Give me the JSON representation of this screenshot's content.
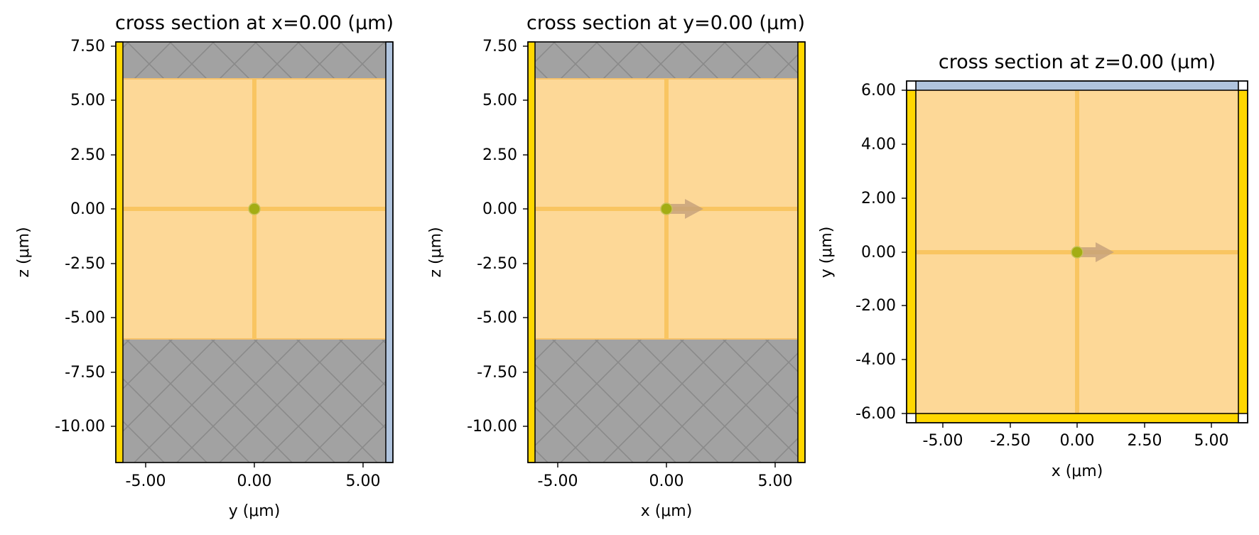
{
  "chart_data": [
    {
      "type": "diagram",
      "title": "cross section at x=0.00 (μm)",
      "xlabel": "y (μm)",
      "ylabel": "z (μm)",
      "xlim": [
        -6.2,
        6.2
      ],
      "ylim": [
        -11.6,
        7.7
      ],
      "xticks": [
        -5,
        0,
        5
      ],
      "xtick_labels": [
        "-5.00",
        "0.00",
        "5.00"
      ],
      "yticks": [
        7.5,
        5,
        2.5,
        0,
        -2.5,
        -5,
        -7.5,
        -10
      ],
      "ytick_labels": [
        "7.50",
        "5.00",
        "2.50",
        "0.00",
        "-2.50",
        "-5.00",
        "-7.50",
        "-10.00"
      ],
      "hatched_regions": [
        [
          6,
          7.7
        ],
        [
          -11.6,
          -6
        ]
      ],
      "medium_region": {
        "h": [
          -6,
          6
        ],
        "v": [
          -6,
          6
        ]
      },
      "left_boundary": "gold",
      "right_boundary": "lightsteelblue",
      "source_arrow": false
    },
    {
      "type": "diagram",
      "title": "cross section at y=0.00 (μm)",
      "xlabel": "x (μm)",
      "ylabel": "z (μm)",
      "xlim": [
        -6.2,
        6.2
      ],
      "ylim": [
        -11.6,
        7.7
      ],
      "xticks": [
        -5,
        0,
        5
      ],
      "xtick_labels": [
        "-5.00",
        "0.00",
        "5.00"
      ],
      "yticks": [
        7.5,
        5,
        2.5,
        0,
        -2.5,
        -5,
        -7.5,
        -10
      ],
      "ytick_labels": [
        "7.50",
        "5.00",
        "2.50",
        "0.00",
        "-2.50",
        "-5.00",
        "-7.50",
        "-10.00"
      ],
      "hatched_regions": [
        [
          6,
          7.7
        ],
        [
          -11.6,
          -6
        ]
      ],
      "medium_region": {
        "h": [
          -6,
          6
        ],
        "v": [
          -6,
          6
        ]
      },
      "left_boundary": "gold",
      "right_boundary": "gold",
      "source_arrow": true
    },
    {
      "type": "diagram",
      "title": "cross section at z=0.00 (μm)",
      "xlabel": "x (μm)",
      "ylabel": "y (μm)",
      "xlim": [
        -6.2,
        6.2
      ],
      "ylim": [
        -6.2,
        6.2
      ],
      "xticks": [
        -5,
        -2.5,
        0,
        2.5,
        5
      ],
      "xtick_labels": [
        "-5.00",
        "-2.50",
        "0.00",
        "2.50",
        "5.00"
      ],
      "yticks": [
        6,
        4,
        2,
        0,
        -2,
        -4,
        -6
      ],
      "ytick_labels": [
        "6.00",
        "4.00",
        "2.00",
        "0.00",
        "-2.00",
        "-4.00",
        "-6.00"
      ],
      "hatched_regions": [],
      "medium_region": {
        "h": [
          -6,
          6
        ],
        "v": [
          -6,
          6
        ]
      },
      "left_boundary": "gold",
      "right_boundary": "gold",
      "top_boundary": "lightsteelblue",
      "bottom_boundary": "gold",
      "source_arrow": true
    }
  ],
  "colors": {
    "medium": "#fdd897",
    "medium_edge": "#f6c26b",
    "cross_line": "#f9c35c",
    "hatch_fill": "#a2a2a2",
    "hatch_line": "#8a8a8a",
    "pec_gold": "#ffd700",
    "periodic_blue": "#b0c4de",
    "source_dot": "#a3ad14",
    "arrow": "#c4a07a"
  }
}
